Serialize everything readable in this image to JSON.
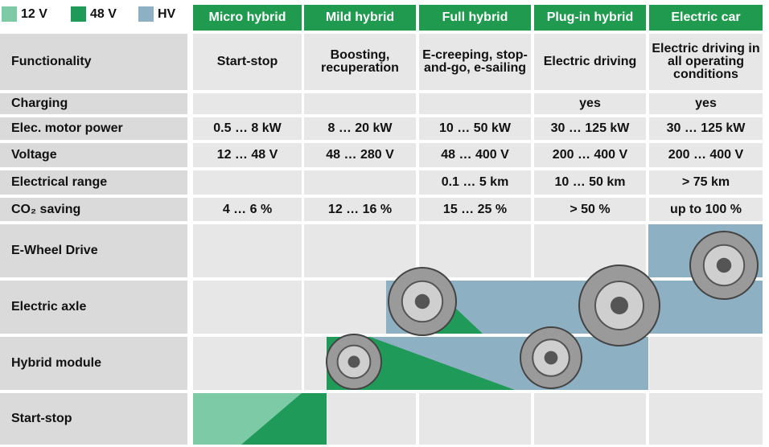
{
  "legend": [
    {
      "label": "12 V",
      "color": "#7ccaa6"
    },
    {
      "label": "48 V",
      "color": "#1f9a58"
    },
    {
      "label": "HV",
      "color": "#8eb0c3"
    }
  ],
  "header": [
    "Micro hybrid",
    "Mild hybrid",
    "Full hybrid",
    "Plug-in hybrid",
    "Electric car"
  ],
  "rows": [
    {
      "label": "Functionality",
      "cells": [
        "Start-stop",
        "Boosting, recuperation",
        "E-creeping, stop-and-go, e-sailing",
        "Electric driving",
        "Electric driving in all operating conditions"
      ]
    },
    {
      "label": "Charging",
      "cells": [
        null,
        null,
        null,
        "yes",
        "yes"
      ]
    },
    {
      "label": "Elec. motor power",
      "cells": [
        "0.5 … 8 kW",
        "8 … 20 kW",
        "10 … 50 kW",
        "30 … 125 kW",
        "30 … 125 kW"
      ]
    },
    {
      "label": "Voltage",
      "cells": [
        "12 … 48 V",
        "48 … 280 V",
        "48 … 400 V",
        "200 … 400 V",
        "200 … 400 V"
      ]
    },
    {
      "label": "Electrical range",
      "cells": [
        null,
        null,
        "0.1 … 5 km",
        "10 … 50 km",
        "> 75 km"
      ]
    },
    {
      "label": "CO₂ saving",
      "cells": [
        "4 … 6 %",
        "12 … 16 %",
        "15 … 25 %",
        "> 50 %",
        "up to 100 %"
      ]
    }
  ],
  "components": [
    "E-Wheel Drive",
    "Electric axle",
    "Hybrid module",
    "Start-stop"
  ]
}
